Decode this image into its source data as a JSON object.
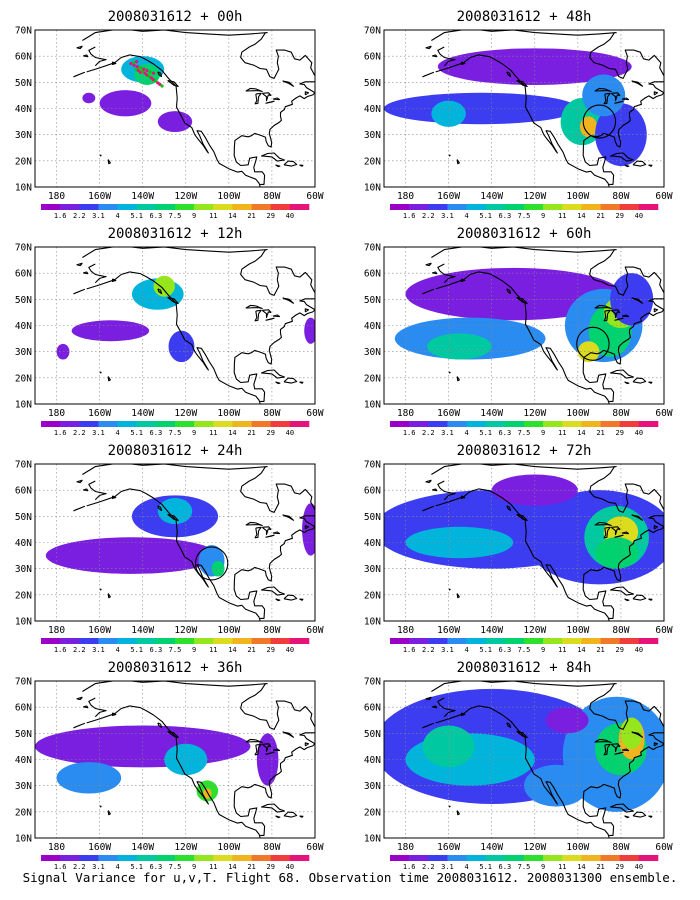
{
  "figure": {
    "caption": "Signal Variance for u,v,T. Flight 68. Observation time 2008031612. 2008031300 ensemble.",
    "lat_labels": [
      "70N",
      "60N",
      "50N",
      "40N",
      "30N",
      "20N",
      "10N"
    ],
    "lon_labels": [
      "180",
      "160W",
      "140W",
      "120W",
      "100W",
      "80W",
      "60W"
    ],
    "colorbar": {
      "labels": [
        "1.6",
        "2.2",
        "3.1",
        "4",
        "5.1",
        "6.3",
        "7.5",
        "9",
        "11",
        "14",
        "21",
        "29",
        "40"
      ],
      "colors": [
        "#9a00c8",
        "#7a1fe0",
        "#3c3cf0",
        "#2a8cf0",
        "#00b4dc",
        "#00c8a0",
        "#00d270",
        "#2ee02e",
        "#96e61e",
        "#dcdc1e",
        "#f0b41e",
        "#f07828",
        "#f03c3c",
        "#e6147a"
      ]
    },
    "panels": [
      {
        "title": "2008031612 + 00h",
        "blobs": [
          [
            -140,
            55,
            10,
            5,
            4
          ],
          [
            -138,
            53,
            6,
            4,
            6
          ],
          [
            -148,
            42,
            12,
            5,
            1
          ],
          [
            -125,
            35,
            8,
            4,
            1
          ],
          [
            -165,
            44,
            3,
            2,
            1
          ]
        ],
        "circle": null,
        "obs_track": true
      },
      {
        "title": "2008031612 + 48h",
        "blobs": [
          [
            -120,
            56,
            45,
            7,
            1
          ],
          [
            -145,
            40,
            45,
            6,
            2
          ],
          [
            -160,
            38,
            8,
            5,
            4
          ],
          [
            -98,
            35,
            10,
            9,
            5
          ],
          [
            -95,
            33,
            4,
            4,
            10
          ],
          [
            -80,
            30,
            12,
            12,
            2
          ],
          [
            -88,
            45,
            10,
            8,
            3
          ]
        ],
        "circle": [
          -90,
          35,
          6
        ],
        "obs_track": false
      },
      {
        "title": "2008031612 + 12h",
        "blobs": [
          [
            -133,
            52,
            12,
            6,
            4
          ],
          [
            -130,
            55,
            5,
            4,
            8
          ],
          [
            -155,
            38,
            18,
            4,
            1
          ],
          [
            -122,
            32,
            6,
            6,
            2
          ],
          [
            -62,
            38,
            3,
            5,
            1
          ],
          [
            -177,
            30,
            3,
            3,
            1
          ]
        ],
        "circle": null,
        "obs_track": false
      },
      {
        "title": "2008031612 + 60h",
        "blobs": [
          [
            -130,
            52,
            50,
            10,
            1
          ],
          [
            -150,
            35,
            35,
            8,
            3
          ],
          [
            -155,
            32,
            15,
            5,
            5
          ],
          [
            -88,
            40,
            18,
            14,
            3
          ],
          [
            -85,
            38,
            10,
            10,
            6
          ],
          [
            -80,
            45,
            8,
            6,
            8
          ],
          [
            -95,
            30,
            5,
            4,
            9
          ],
          [
            -75,
            50,
            10,
            10,
            2
          ]
        ],
        "circle": [
          -93,
          33,
          6
        ],
        "obs_track": false
      },
      {
        "title": "2008031612 + 24h",
        "blobs": [
          [
            -145,
            35,
            40,
            7,
            1
          ],
          [
            -125,
            50,
            20,
            8,
            2
          ],
          [
            -125,
            52,
            8,
            5,
            4
          ],
          [
            -108,
            33,
            6,
            6,
            3
          ],
          [
            -105,
            30,
            3,
            3,
            6
          ],
          [
            -62,
            45,
            4,
            10,
            1
          ]
        ],
        "circle": [
          -108,
          32,
          6
        ],
        "obs_track": false
      },
      {
        "title": "2008031612 + 72h",
        "blobs": [
          [
            -140,
            45,
            55,
            15,
            2
          ],
          [
            -155,
            40,
            25,
            6,
            4
          ],
          [
            -90,
            42,
            35,
            18,
            2
          ],
          [
            -82,
            42,
            15,
            12,
            5
          ],
          [
            -80,
            44,
            8,
            6,
            9
          ],
          [
            -82,
            36,
            10,
            6,
            6
          ],
          [
            -120,
            60,
            20,
            6,
            1
          ]
        ],
        "circle": null,
        "obs_track": false
      },
      {
        "title": "2008031612 + 36h",
        "blobs": [
          [
            -140,
            45,
            50,
            8,
            1
          ],
          [
            -165,
            33,
            15,
            6,
            3
          ],
          [
            -120,
            40,
            10,
            6,
            4
          ],
          [
            -110,
            28,
            5,
            4,
            7
          ],
          [
            -110,
            27,
            2,
            2,
            10
          ],
          [
            -82,
            40,
            5,
            10,
            1
          ]
        ],
        "circle": null,
        "obs_track": false
      },
      {
        "title": "2008031612 + 84h",
        "blobs": [
          [
            -140,
            45,
            55,
            22,
            2
          ],
          [
            -150,
            40,
            30,
            10,
            4
          ],
          [
            -160,
            45,
            12,
            8,
            5
          ],
          [
            -110,
            30,
            15,
            8,
            3
          ],
          [
            -82,
            42,
            25,
            22,
            3
          ],
          [
            -80,
            44,
            12,
            10,
            6
          ],
          [
            -75,
            48,
            6,
            8,
            10
          ],
          [
            -75,
            50,
            5,
            6,
            8
          ],
          [
            -105,
            55,
            10,
            5,
            1
          ]
        ],
        "circle": null,
        "obs_track": false
      }
    ]
  }
}
